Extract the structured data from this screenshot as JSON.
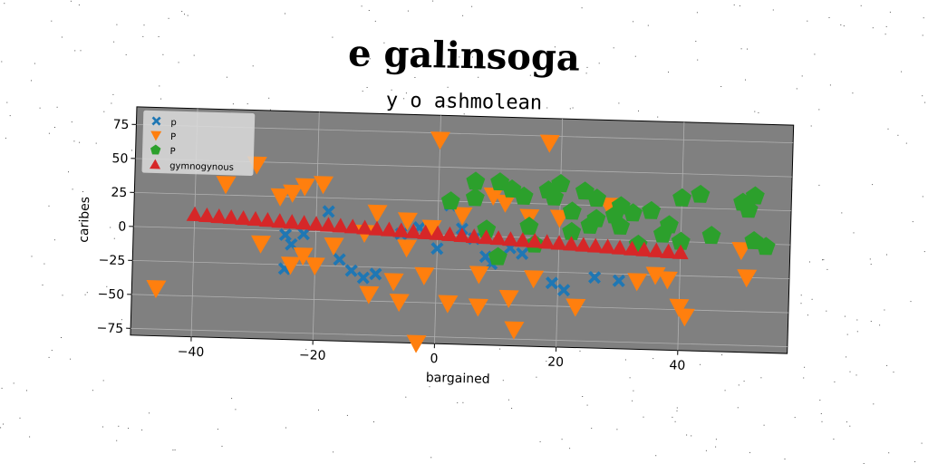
{
  "page": {
    "title": "e galinsoga",
    "subtitle": "y o ashmolean"
  },
  "chart_data": {
    "type": "scatter",
    "xlabel": "bargained",
    "ylabel": "caribes",
    "xlim": [
      -50,
      58
    ],
    "ylim": [
      -80,
      88
    ],
    "xticks": [
      -40,
      -20,
      0,
      20,
      40
    ],
    "yticks": [
      -75,
      -50,
      -25,
      0,
      25,
      50,
      75
    ],
    "grid": true,
    "legend_position": "upper-left",
    "background": "#808080",
    "series": [
      {
        "name": "p",
        "marker": "x",
        "color": "#1f77b4",
        "points": [
          [
            -25,
            -3
          ],
          [
            -24,
            -10
          ],
          [
            -22,
            -2
          ],
          [
            -18,
            15
          ],
          [
            -16,
            -20
          ],
          [
            -14,
            -28
          ],
          [
            -25,
            -28
          ],
          [
            -12,
            -33
          ],
          [
            -10,
            -30
          ],
          [
            -6,
            0
          ],
          [
            -3,
            5
          ],
          [
            0,
            -10
          ],
          [
            2,
            22
          ],
          [
            4,
            5
          ],
          [
            6,
            -2
          ],
          [
            8,
            -15
          ],
          [
            9,
            -20
          ],
          [
            12,
            -8
          ],
          [
            14,
            -12
          ],
          [
            19,
            -33
          ],
          [
            21,
            -38
          ],
          [
            26,
            -28
          ],
          [
            30,
            -30
          ]
        ]
      },
      {
        "name": "P",
        "marker": "v",
        "color": "#ff7f0e",
        "points": [
          [
            -46,
            -45
          ],
          [
            -35,
            33
          ],
          [
            -30,
            48
          ],
          [
            -29,
            -10
          ],
          [
            -26,
            25
          ],
          [
            -24,
            28
          ],
          [
            -22,
            33
          ],
          [
            -24,
            -25
          ],
          [
            -22,
            -18
          ],
          [
            -20,
            -25
          ],
          [
            -17,
            -10
          ],
          [
            -12,
            0
          ],
          [
            -11,
            -45
          ],
          [
            -10,
            15
          ],
          [
            -7,
            -35
          ],
          [
            -6,
            -50
          ],
          [
            -5,
            -10
          ],
          [
            -3,
            -80
          ],
          [
            -2,
            -30
          ],
          [
            -1,
            5
          ],
          [
            0,
            70
          ],
          [
            2,
            -50
          ],
          [
            4,
            15
          ],
          [
            7,
            -28
          ],
          [
            7,
            -52
          ],
          [
            9,
            30
          ],
          [
            11,
            25
          ],
          [
            12,
            -45
          ],
          [
            13,
            -68
          ],
          [
            15,
            15
          ],
          [
            16,
            -30
          ],
          [
            18,
            70
          ],
          [
            20,
            15
          ],
          [
            23,
            -50
          ],
          [
            28,
            25
          ],
          [
            33,
            -30
          ],
          [
            36,
            -25
          ],
          [
            38,
            -28
          ],
          [
            40,
            -48
          ],
          [
            41,
            -55
          ],
          [
            50,
            -5
          ],
          [
            51,
            -25
          ],
          [
            -5,
            10
          ],
          [
            -19,
            35
          ]
        ]
      },
      {
        "name": "P",
        "marker": "p",
        "color": "#2ca02c",
        "points": [
          [
            2,
            25
          ],
          [
            6,
            40
          ],
          [
            6,
            28
          ],
          [
            8,
            5
          ],
          [
            10,
            40
          ],
          [
            12,
            35
          ],
          [
            14,
            30
          ],
          [
            15,
            8
          ],
          [
            16,
            -5
          ],
          [
            18,
            35
          ],
          [
            19,
            30
          ],
          [
            20,
            40
          ],
          [
            22,
            5
          ],
          [
            22,
            20
          ],
          [
            24,
            35
          ],
          [
            25,
            10
          ],
          [
            26,
            15
          ],
          [
            26,
            30
          ],
          [
            29,
            18
          ],
          [
            30,
            25
          ],
          [
            30,
            10
          ],
          [
            32,
            20
          ],
          [
            33,
            -3
          ],
          [
            35,
            22
          ],
          [
            37,
            5
          ],
          [
            38,
            12
          ],
          [
            40,
            32
          ],
          [
            40,
            0
          ],
          [
            43,
            35
          ],
          [
            45,
            5
          ],
          [
            50,
            30
          ],
          [
            51,
            25
          ],
          [
            52,
            2
          ],
          [
            54,
            -2
          ],
          [
            52,
            35
          ],
          [
            10,
            -15
          ]
        ]
      },
      {
        "name": "gymnogynous",
        "marker": "^",
        "color": "#d62728",
        "points": [
          [
            -40,
            10
          ],
          [
            -38,
            9.5
          ],
          [
            -36,
            9
          ],
          [
            -34,
            8.6
          ],
          [
            -32,
            8.2
          ],
          [
            -30,
            7.8
          ],
          [
            -28,
            7.3
          ],
          [
            -26,
            6.8
          ],
          [
            -24,
            6.4
          ],
          [
            -22,
            6
          ],
          [
            -20,
            5.5
          ],
          [
            -18,
            5
          ],
          [
            -16,
            4.6
          ],
          [
            -14,
            4.2
          ],
          [
            -12,
            3.7
          ],
          [
            -10,
            3.2
          ],
          [
            -8,
            2.8
          ],
          [
            -6,
            2.4
          ],
          [
            -4,
            1.9
          ],
          [
            -2,
            1.4
          ],
          [
            0,
            1
          ],
          [
            2,
            0.5
          ],
          [
            4,
            0
          ],
          [
            6,
            -0.5
          ],
          [
            8,
            -0.9
          ],
          [
            10,
            -1.3
          ],
          [
            12,
            -1.8
          ],
          [
            14,
            -2.2
          ],
          [
            16,
            -2.6
          ],
          [
            18,
            -3.1
          ],
          [
            20,
            -3.6
          ],
          [
            22,
            -4
          ],
          [
            24,
            -4.5
          ],
          [
            26,
            -4.9
          ],
          [
            28,
            -5.3
          ],
          [
            30,
            -5.8
          ],
          [
            32,
            -6.3
          ],
          [
            34,
            -6.7
          ],
          [
            36,
            -7.1
          ],
          [
            38,
            -7.6
          ],
          [
            40,
            -8
          ]
        ]
      }
    ]
  }
}
